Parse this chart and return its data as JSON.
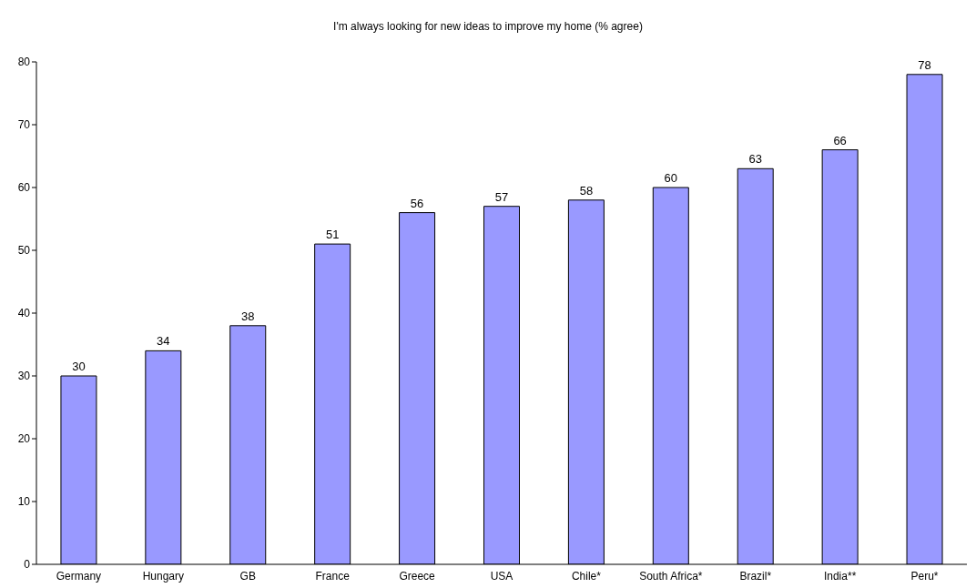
{
  "chart_data": {
    "type": "bar",
    "title": "I'm always looking for new ideas to improve my home (% agree)",
    "categories": [
      "Germany",
      "Hungary",
      "GB",
      "France",
      "Greece",
      "USA",
      "Chile*",
      "South Africa*",
      "Brazil*",
      "India**",
      "Peru*"
    ],
    "values": [
      30,
      34,
      38,
      51,
      56,
      57,
      58,
      60,
      63,
      66,
      78
    ],
    "color": "#9999ff",
    "ylim": [
      0,
      80
    ],
    "yticks": [
      0,
      10,
      20,
      30,
      40,
      50,
      60,
      70,
      80
    ],
    "grid": false,
    "legend": false,
    "data_labels": true
  }
}
